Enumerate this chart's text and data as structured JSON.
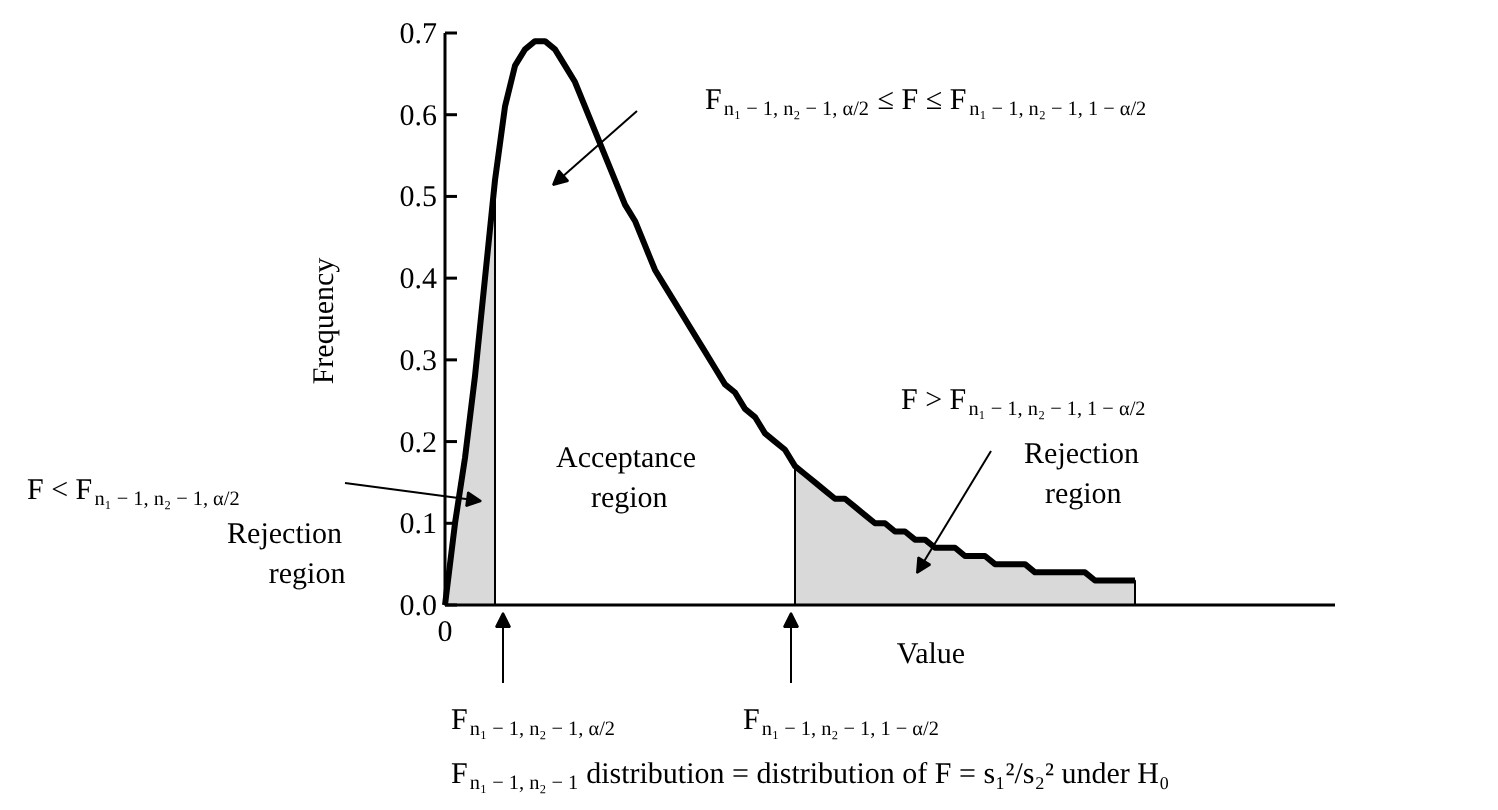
{
  "chart_data": {
    "type": "line",
    "xlabel": "Value",
    "ylabel": "Frequency",
    "grid": false,
    "categories": [
      "0",
      null,
      null,
      null,
      null,
      null,
      null,
      null,
      null,
      null,
      null,
      null,
      null,
      null,
      null,
      null,
      null,
      null,
      null,
      null,
      null,
      null,
      null,
      null,
      null,
      null,
      null,
      null,
      null,
      null,
      null,
      null,
      null,
      null,
      null,
      null,
      null,
      null,
      null,
      null,
      null,
      null,
      null,
      null,
      null,
      null,
      null,
      null,
      null,
      null,
      null,
      null,
      null,
      null,
      null,
      null,
      null,
      null,
      null,
      null,
      null,
      null,
      null,
      null,
      null,
      null,
      null,
      null,
      null,
      null,
      null,
      null,
      null,
      null,
      null,
      null,
      null,
      null,
      null,
      null,
      null,
      null,
      null,
      null,
      null,
      null,
      null,
      null,
      null,
      null
    ],
    "ylim": [
      0,
      0.7
    ],
    "yticks": [
      {
        "value": 0,
        "label": "0.0"
      },
      0.1,
      0.2,
      0.3,
      0.4,
      0.5,
      0.6,
      0.7
    ],
    "series": [
      {
        "type": "area",
        "color": "#d9d9d9",
        "values": [
          0,
          0.1,
          0.18,
          0.28,
          0.4,
          0.52,
          null,
          null,
          null,
          null,
          null,
          null,
          null,
          null,
          null,
          null,
          null,
          null,
          null,
          null,
          null,
          null,
          null,
          null,
          null,
          null,
          null,
          null,
          null,
          null,
          null,
          null,
          null,
          null,
          null,
          null,
          null,
          null,
          null,
          null,
          null,
          null,
          null,
          null,
          null,
          null,
          null,
          null,
          null,
          null,
          null,
          null,
          null,
          null,
          null,
          null,
          null,
          null,
          null,
          null,
          null,
          null,
          null,
          null,
          null,
          null,
          null,
          null,
          null,
          null,
          null,
          null,
          null,
          null,
          null,
          null,
          null,
          null,
          null,
          null,
          null,
          null,
          null,
          null,
          null,
          null,
          null,
          null,
          null,
          null
        ]
      },
      {
        "type": "area",
        "color": "#d9d9d9",
        "values": [
          null,
          null,
          null,
          null,
          null,
          null,
          null,
          null,
          null,
          null,
          null,
          null,
          null,
          null,
          null,
          null,
          null,
          null,
          null,
          null,
          null,
          null,
          null,
          null,
          null,
          null,
          null,
          null,
          null,
          null,
          null,
          null,
          null,
          null,
          null,
          0.17,
          0.16,
          0.15,
          0.14,
          0.13,
          0.13,
          0.12,
          0.11,
          0.1,
          0.1,
          0.09,
          0.09,
          0.08,
          0.08,
          0.07,
          0.07,
          0.07,
          0.06,
          0.06,
          0.06,
          0.05,
          0.05,
          0.05,
          0.05,
          0.04,
          0.04,
          0.04,
          0.04,
          0.04,
          0.04,
          0.03,
          0.03,
          0.03,
          0.03,
          0.03,
          null,
          null,
          null,
          null,
          null,
          null,
          null,
          null,
          null,
          null,
          null,
          null,
          null,
          null,
          null,
          null,
          null,
          null,
          null,
          null
        ]
      },
      {
        "color": "#000000",
        "values": [
          0,
          0.1,
          0.18,
          0.28,
          0.4,
          0.52,
          0.61,
          0.66,
          0.68,
          0.69,
          0.69,
          0.68,
          0.66,
          0.64,
          0.61,
          0.58,
          0.55,
          0.52,
          0.49,
          0.47,
          0.44,
          0.41,
          0.39,
          0.37,
          0.35,
          0.33,
          0.31,
          0.29,
          0.27,
          0.26,
          0.24,
          0.23,
          0.21,
          0.2,
          0.19,
          0.17,
          0.16,
          0.15,
          0.14,
          0.13,
          0.13,
          0.12,
          0.11,
          0.1,
          0.1,
          0.09,
          0.09,
          0.08,
          0.08,
          0.07,
          0.07,
          0.07,
          0.06,
          0.06,
          0.06,
          0.05,
          0.05,
          0.05,
          0.05,
          0.04,
          0.04,
          0.04,
          0.04,
          0.04,
          0.04,
          0.03,
          0.03,
          0.03,
          0.03,
          0.03,
          null,
          null,
          null,
          null,
          null,
          null,
          null,
          null,
          null,
          null,
          null,
          null,
          null,
          null,
          null,
          null,
          null,
          null,
          null,
          null
        ]
      }
    ],
    "annotations": [
      "F$_{n₁ − 1, n₂ − 1, α/2}$ ≤ F ≤ F$_{n₁ − 1, n₂ − 1, 1 − α/2}$",
      "Acceptance\nregion",
      "F < F$_{n₁ − 1, n₂ − 1, α/2}$",
      "Rejection\nregion",
      "F > F$_{n₁ − 1, n₂ − 1, 1 − α/2}$",
      "Rejection\nregion",
      "F$_{n₁ − 1, n₂ − 1, α/2}$",
      "F$_{n₁ − 1, n₂ − 1, 1 − α/2}$",
      "F$_{n₁ − 1, n₂ − 1}$ distribution = distribution of F = s₁²/s₂² under H₀"
    ]
  }
}
